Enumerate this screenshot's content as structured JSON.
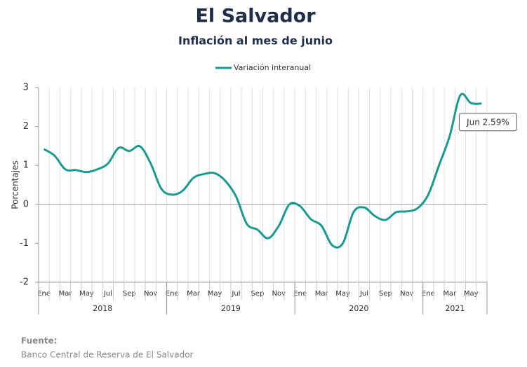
{
  "chart_data": {
    "type": "line",
    "title": "El Salvador",
    "subtitle": "Inflación al mes de junio",
    "y_label": "Porcentajes",
    "categories": [
      "Ene",
      null,
      "Mar",
      null,
      "May",
      null,
      "Jul",
      null,
      "Sep",
      null,
      "Nov",
      null,
      "Ene",
      null,
      "Mar",
      null,
      "May",
      null,
      "Jul",
      null,
      "Sep",
      null,
      "Nov",
      null,
      "Ene",
      null,
      "Mar",
      null,
      "May",
      null,
      "Jul",
      null,
      "Sep",
      null,
      "Nov",
      null,
      "Ene",
      null,
      "Mar",
      null,
      "May",
      null
    ],
    "years": [
      "2018",
      "2019",
      "2020",
      "2021"
    ],
    "series": [
      {
        "name": "Variación interanual",
        "color": "#1a9a8f",
        "values": [
          1.42,
          1.25,
          0.9,
          0.88,
          0.83,
          0.9,
          1.05,
          1.45,
          1.37,
          1.49,
          1.05,
          0.4,
          0.25,
          0.35,
          0.68,
          0.78,
          0.8,
          0.6,
          0.2,
          -0.5,
          -0.65,
          -0.87,
          -0.55,
          0.0,
          -0.05,
          -0.38,
          -0.55,
          -1.05,
          -1.0,
          -0.2,
          -0.08,
          -0.3,
          -0.4,
          -0.2,
          -0.18,
          -0.1,
          0.25,
          1.0,
          1.75,
          2.8,
          2.6,
          2.59
        ]
      }
    ],
    "annotation": "Jun 2.59%",
    "ylim": [
      -2,
      3
    ],
    "yticks": [
      3,
      2,
      1,
      0,
      -1,
      -2
    ],
    "grid": true,
    "legend": "top",
    "source_title": "Fuente:",
    "source": "Banco Central de Reserva de El Salvador"
  }
}
